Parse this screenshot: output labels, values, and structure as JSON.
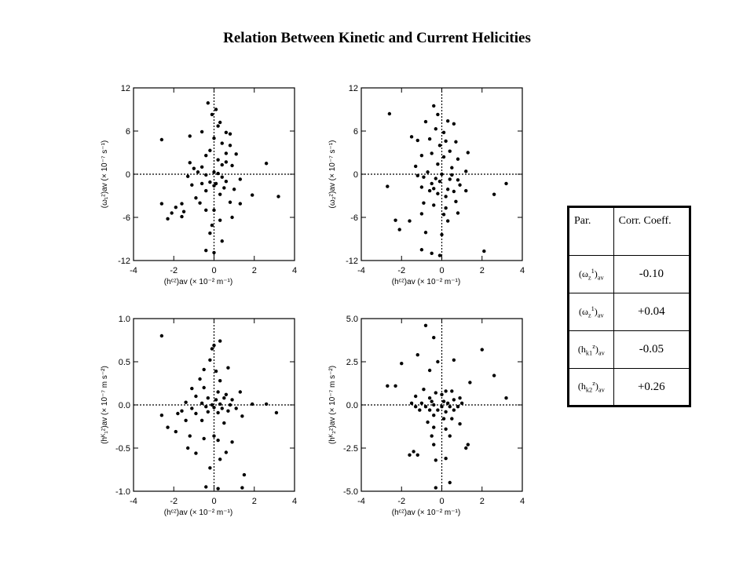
{
  "title": "Relation Between Kinetic and Current Helicities",
  "table": {
    "header_param": "Par.",
    "header_corr": "Corr. Coeff.",
    "rows": [
      {
        "param_base": "(ω",
        "param_sub": "z",
        "param_sup": "1",
        "param_tail": "av",
        "value": "-0.10"
      },
      {
        "param_base": "(ω",
        "param_sub": "z",
        "param_sup": "1",
        "param_tail": "av",
        "value": "+0.04"
      },
      {
        "param_base": "(h",
        "param_sub": "k1",
        "param_sup": "z",
        "param_tail": "av",
        "value": "-0.05"
      },
      {
        "param_base": "(h",
        "param_sub": "k2",
        "param_sup": "z",
        "param_tail": "av",
        "value": "+0.26"
      }
    ]
  },
  "chart_data": [
    {
      "type": "scatter",
      "title": "",
      "xlabel": "(hᶜᶻ)av (× 10⁻² m⁻¹)",
      "ylabel": "(ω₁ᶻ)av (× 10⁻⁷ s⁻¹)",
      "xlim": [
        -4,
        4
      ],
      "ylim": [
        -12,
        12
      ],
      "xticks": [
        -4,
        -2,
        0,
        2,
        4
      ],
      "yticks": [
        -12,
        -6,
        0,
        6,
        12
      ],
      "ytick_labels": [
        "-12",
        "-6",
        "0",
        "6",
        "12"
      ],
      "points": [
        [
          -0.3,
          9.9
        ],
        [
          0.1,
          9.0
        ],
        [
          -0.1,
          8.3
        ],
        [
          0.3,
          7.2
        ],
        [
          0.2,
          6.7
        ],
        [
          -0.6,
          5.9
        ],
        [
          0.6,
          5.8
        ],
        [
          0.8,
          5.6
        ],
        [
          -1.2,
          5.3
        ],
        [
          0.0,
          5.0
        ],
        [
          0.4,
          4.3
        ],
        [
          -2.6,
          4.8
        ],
        [
          0.8,
          4.0
        ],
        [
          -0.2,
          3.3
        ],
        [
          0.6,
          2.9
        ],
        [
          1.1,
          2.8
        ],
        [
          -0.4,
          2.6
        ],
        [
          0.2,
          2.0
        ],
        [
          0.6,
          1.7
        ],
        [
          -1.2,
          1.6
        ],
        [
          -1.0,
          0.8
        ],
        [
          0.4,
          1.3
        ],
        [
          -0.6,
          1.0
        ],
        [
          2.6,
          1.5
        ],
        [
          0.9,
          1.2
        ],
        [
          -0.8,
          0.3
        ],
        [
          0.0,
          0.3
        ],
        [
          0.2,
          0.1
        ],
        [
          -0.4,
          -0.1
        ],
        [
          0.4,
          -0.4
        ],
        [
          -1.3,
          -0.3
        ],
        [
          1.3,
          -0.7
        ],
        [
          0.6,
          -1.0
        ],
        [
          0.1,
          -1.3
        ],
        [
          -0.2,
          -1.1
        ],
        [
          -0.6,
          -1.3
        ],
        [
          -1.1,
          -1.5
        ],
        [
          0.5,
          -1.9
        ],
        [
          1.0,
          -2.1
        ],
        [
          0.0,
          -1.6
        ],
        [
          -0.4,
          -2.3
        ],
        [
          0.3,
          -2.8
        ],
        [
          -0.9,
          -3.3
        ],
        [
          1.9,
          -2.9
        ],
        [
          3.2,
          -3.1
        ],
        [
          -2.6,
          -4.1
        ],
        [
          -1.6,
          -4.1
        ],
        [
          -0.7,
          -4.0
        ],
        [
          0.8,
          -3.9
        ],
        [
          1.3,
          -4.1
        ],
        [
          -1.9,
          -4.6
        ],
        [
          -1.5,
          -5.2
        ],
        [
          -2.1,
          -5.4
        ],
        [
          0.0,
          -5.0
        ],
        [
          -0.4,
          -5.0
        ],
        [
          -2.3,
          -6.2
        ],
        [
          -1.6,
          -5.9
        ],
        [
          0.9,
          -6.0
        ],
        [
          0.3,
          -6.4
        ],
        [
          -0.1,
          -7.1
        ],
        [
          -0.2,
          -8.2
        ],
        [
          0.4,
          -9.3
        ],
        [
          -0.4,
          -10.6
        ],
        [
          0.0,
          -10.9
        ]
      ]
    },
    {
      "type": "scatter",
      "title": "",
      "xlabel": "(hᶜᶻ)av (× 10⁻² m⁻¹)",
      "ylabel": "(ω₂ᶻ)av (× 10⁻⁷ s⁻¹)",
      "xlim": [
        -4,
        4
      ],
      "ylim": [
        -12,
        12
      ],
      "xticks": [
        -4,
        -2,
        0,
        2,
        4
      ],
      "yticks": [
        -12,
        -6,
        0,
        6,
        12
      ],
      "ytick_labels": [
        "-12",
        "-6",
        "0",
        "6",
        "12"
      ],
      "points": [
        [
          -0.4,
          9.5
        ],
        [
          -0.2,
          8.3
        ],
        [
          -0.8,
          7.3
        ],
        [
          0.3,
          7.4
        ],
        [
          0.6,
          7.0
        ],
        [
          -2.6,
          8.4
        ],
        [
          -0.3,
          6.3
        ],
        [
          0.1,
          5.8
        ],
        [
          -1.5,
          5.2
        ],
        [
          -1.2,
          4.7
        ],
        [
          -0.6,
          4.9
        ],
        [
          0.2,
          4.6
        ],
        [
          0.7,
          4.5
        ],
        [
          -0.1,
          4.0
        ],
        [
          1.3,
          3.0
        ],
        [
          0.4,
          3.2
        ],
        [
          -0.5,
          2.9
        ],
        [
          -1.0,
          2.6
        ],
        [
          0.1,
          2.4
        ],
        [
          0.8,
          2.1
        ],
        [
          -1.3,
          1.1
        ],
        [
          -0.2,
          1.4
        ],
        [
          0.5,
          0.9
        ],
        [
          1.2,
          0.4
        ],
        [
          -0.7,
          0.3
        ],
        [
          0.0,
          0.0
        ],
        [
          0.5,
          -0.1
        ],
        [
          -1.2,
          -0.2
        ],
        [
          -0.9,
          -0.4
        ],
        [
          -0.3,
          -0.6
        ],
        [
          0.4,
          -0.7
        ],
        [
          0.8,
          -0.8
        ],
        [
          -0.5,
          -1.3
        ],
        [
          -0.1,
          -1.0
        ],
        [
          0.9,
          -1.5
        ],
        [
          -2.7,
          -1.7
        ],
        [
          -1.0,
          -1.8
        ],
        [
          -0.4,
          -2.0
        ],
        [
          0.3,
          -2.1
        ],
        [
          -0.6,
          -2.3
        ],
        [
          0.6,
          -2.4
        ],
        [
          1.2,
          -2.3
        ],
        [
          -0.2,
          -2.7
        ],
        [
          0.2,
          -3.1
        ],
        [
          2.6,
          -2.8
        ],
        [
          3.2,
          -1.3
        ],
        [
          -0.9,
          -4.0
        ],
        [
          0.7,
          -3.8
        ],
        [
          -0.4,
          -4.3
        ],
        [
          0.2,
          -4.7
        ],
        [
          -1.0,
          -5.5
        ],
        [
          -2.3,
          -6.4
        ],
        [
          -1.6,
          -6.5
        ],
        [
          0.1,
          -5.6
        ],
        [
          0.8,
          -5.4
        ],
        [
          0.3,
          -6.5
        ],
        [
          -2.1,
          -7.7
        ],
        [
          -0.8,
          -8.1
        ],
        [
          0.0,
          -8.4
        ],
        [
          -1.0,
          -10.5
        ],
        [
          -0.5,
          -11.0
        ],
        [
          -0.1,
          -11.3
        ],
        [
          2.1,
          -10.7
        ]
      ]
    },
    {
      "type": "scatter",
      "title": "",
      "xlabel": "(hᶜᶻ)av (× 10⁻² m⁻¹)",
      "ylabel": "(hᴷ₁ᶻ)av (× 10⁻⁷ m s⁻²)",
      "xlim": [
        -4,
        4
      ],
      "ylim": [
        -1,
        1
      ],
      "xticks": [
        -4,
        -2,
        0,
        2,
        4
      ],
      "yticks": [
        -1,
        -0.5,
        0,
        0.5,
        1
      ],
      "ytick_labels": [
        "-1.0",
        "-0.5",
        "0.0",
        "0.5",
        "1.0"
      ],
      "points": [
        [
          -2.6,
          0.8
        ],
        [
          0.3,
          0.74
        ],
        [
          -0.1,
          0.65
        ],
        [
          0.0,
          0.69
        ],
        [
          -0.2,
          0.52
        ],
        [
          -0.5,
          0.41
        ],
        [
          0.1,
          0.39
        ],
        [
          0.7,
          0.43
        ],
        [
          -0.7,
          0.3
        ],
        [
          0.3,
          0.28
        ],
        [
          -1.1,
          0.19
        ],
        [
          -0.5,
          0.2
        ],
        [
          0.2,
          0.15
        ],
        [
          0.6,
          0.12
        ],
        [
          1.3,
          0.15
        ],
        [
          -0.9,
          0.1
        ],
        [
          -0.3,
          0.08
        ],
        [
          0.1,
          0.06
        ],
        [
          0.5,
          0.08
        ],
        [
          0.9,
          0.06
        ],
        [
          -1.4,
          0.03
        ],
        [
          -0.6,
          0.02
        ],
        [
          -0.1,
          0.0
        ],
        [
          0.3,
          0.01
        ],
        [
          0.8,
          0.0
        ],
        [
          1.9,
          0.01
        ],
        [
          2.6,
          0.01
        ],
        [
          3.1,
          -0.09
        ],
        [
          -1.6,
          -0.07
        ],
        [
          -1.1,
          -0.04
        ],
        [
          -0.4,
          -0.02
        ],
        [
          0.0,
          -0.03
        ],
        [
          0.4,
          -0.04
        ],
        [
          0.7,
          -0.07
        ],
        [
          1.1,
          -0.04
        ],
        [
          -2.6,
          -0.12
        ],
        [
          -1.8,
          -0.1
        ],
        [
          -0.9,
          -0.1
        ],
        [
          -0.3,
          -0.08
        ],
        [
          0.2,
          -0.09
        ],
        [
          1.4,
          -0.13
        ],
        [
          -1.4,
          -0.18
        ],
        [
          -0.6,
          -0.18
        ],
        [
          0.5,
          -0.21
        ],
        [
          -2.3,
          -0.26
        ],
        [
          -1.9,
          -0.31
        ],
        [
          -1.2,
          -0.36
        ],
        [
          0.0,
          -0.36
        ],
        [
          -0.5,
          -0.39
        ],
        [
          0.2,
          -0.41
        ],
        [
          0.9,
          -0.43
        ],
        [
          -1.3,
          -0.5
        ],
        [
          -0.9,
          -0.56
        ],
        [
          0.6,
          -0.55
        ],
        [
          0.3,
          -0.63
        ],
        [
          -0.2,
          -0.73
        ],
        [
          1.5,
          -0.81
        ],
        [
          -0.4,
          -0.95
        ],
        [
          0.2,
          -0.97
        ],
        [
          1.4,
          -0.96
        ]
      ]
    },
    {
      "type": "scatter",
      "title": "",
      "xlabel": "(hᶜᶻ)av (× 10⁻² m⁻¹)",
      "ylabel": "(hᴷ₂ᶻ)av (× 10⁻⁷ m s⁻²)",
      "xlim": [
        -4,
        4
      ],
      "ylim": [
        -5,
        5
      ],
      "xticks": [
        -4,
        -2,
        0,
        2,
        4
      ],
      "yticks": [
        -5,
        -2.5,
        0,
        2.5,
        5
      ],
      "ytick_labels": [
        "-5.0",
        "-2.5",
        "0.0",
        "2.5",
        "5.0"
      ],
      "points": [
        [
          -0.8,
          4.6
        ],
        [
          -0.4,
          3.9
        ],
        [
          -2.0,
          2.4
        ],
        [
          -1.2,
          2.9
        ],
        [
          2.0,
          3.2
        ],
        [
          -0.2,
          2.5
        ],
        [
          0.6,
          2.6
        ],
        [
          -0.6,
          2.0
        ],
        [
          2.6,
          1.7
        ],
        [
          1.4,
          1.3
        ],
        [
          -2.7,
          1.1
        ],
        [
          -2.3,
          1.1
        ],
        [
          -0.9,
          0.9
        ],
        [
          -0.3,
          0.7
        ],
        [
          0.2,
          0.8
        ],
        [
          0.5,
          0.8
        ],
        [
          -1.3,
          0.5
        ],
        [
          -0.6,
          0.4
        ],
        [
          0.0,
          0.6
        ],
        [
          0.9,
          0.4
        ],
        [
          3.2,
          0.4
        ],
        [
          -1.5,
          0.1
        ],
        [
          -1.0,
          0.1
        ],
        [
          -0.5,
          0.2
        ],
        [
          0.1,
          0.2
        ],
        [
          0.3,
          0.1
        ],
        [
          0.6,
          0.3
        ],
        [
          1.0,
          0.1
        ],
        [
          -1.3,
          -0.1
        ],
        [
          -0.8,
          -0.1
        ],
        [
          -0.4,
          0.0
        ],
        [
          0.0,
          -0.1
        ],
        [
          0.4,
          -0.1
        ],
        [
          0.8,
          -0.1
        ],
        [
          -1.1,
          -0.3
        ],
        [
          -0.6,
          -0.3
        ],
        [
          -0.2,
          -0.3
        ],
        [
          0.2,
          -0.4
        ],
        [
          0.6,
          -0.3
        ],
        [
          -0.4,
          -0.6
        ],
        [
          0.1,
          -0.8
        ],
        [
          0.5,
          -0.8
        ],
        [
          -0.7,
          -1.0
        ],
        [
          0.9,
          -1.1
        ],
        [
          -0.4,
          -1.3
        ],
        [
          0.2,
          -1.4
        ],
        [
          -0.5,
          -1.8
        ],
        [
          0.4,
          -1.8
        ],
        [
          -0.4,
          -2.3
        ],
        [
          1.3,
          -2.3
        ],
        [
          1.2,
          -2.5
        ],
        [
          -1.4,
          -2.7
        ],
        [
          -1.2,
          -2.9
        ],
        [
          -1.6,
          -2.9
        ],
        [
          0.2,
          -3.1
        ],
        [
          -0.3,
          -3.2
        ],
        [
          0.4,
          -4.5
        ],
        [
          -0.3,
          -4.8
        ]
      ]
    }
  ]
}
